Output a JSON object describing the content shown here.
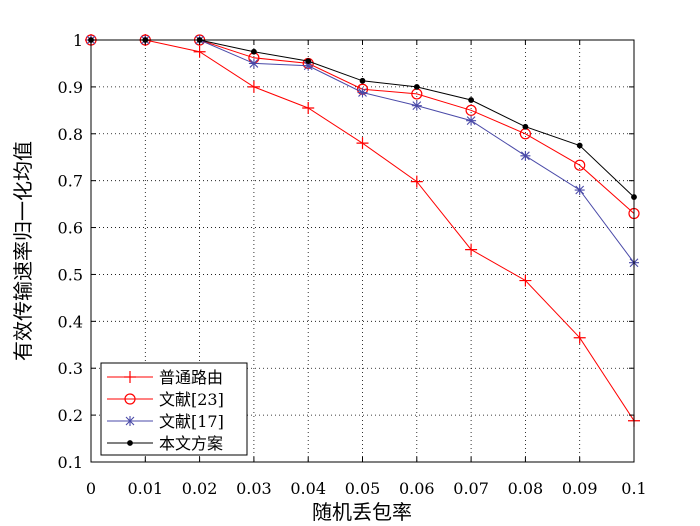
{
  "chart_data": {
    "type": "line",
    "xlabel": "随机丢包率",
    "ylabel": "有效传输速率归一化均值",
    "x": [
      0,
      0.01,
      0.02,
      0.03,
      0.04,
      0.05,
      0.06,
      0.07,
      0.08,
      0.09,
      0.1
    ],
    "xticks": [
      "0",
      "0.01",
      "0.02",
      "0.03",
      "0.04",
      "0.05",
      "0.06",
      "0.07",
      "0.08",
      "0.09",
      "0.1"
    ],
    "xlim": [
      0,
      0.1
    ],
    "ylim": [
      0.1,
      1
    ],
    "yticks": [
      "0.1",
      "0.2",
      "0.3",
      "0.4",
      "0.5",
      "0.6",
      "0.7",
      "0.8",
      "0.9",
      "1"
    ],
    "grid": true,
    "legend_position": "bottom-left",
    "series": [
      {
        "name": "普通路由",
        "color": "#ff0000",
        "marker": "plus",
        "values": [
          1.0,
          1.0,
          0.975,
          0.9,
          0.855,
          0.78,
          0.698,
          0.553,
          0.487,
          0.365,
          0.188
        ]
      },
      {
        "name": "文献[23]",
        "color": "#ff0000",
        "marker": "circle",
        "values": [
          1.0,
          1.0,
          1.0,
          0.962,
          0.95,
          0.895,
          0.885,
          0.85,
          0.8,
          0.733,
          0.63
        ]
      },
      {
        "name": "文献[17]",
        "color": "#4a4aa8",
        "marker": "star",
        "values": [
          1.0,
          1.0,
          1.0,
          0.95,
          0.945,
          0.888,
          0.86,
          0.828,
          0.753,
          0.68,
          0.525
        ]
      },
      {
        "name": "本文方案",
        "color": "#000000",
        "marker": "dot",
        "values": [
          1.0,
          1.0,
          1.0,
          0.975,
          0.955,
          0.913,
          0.9,
          0.872,
          0.815,
          0.775,
          0.665
        ]
      }
    ]
  }
}
